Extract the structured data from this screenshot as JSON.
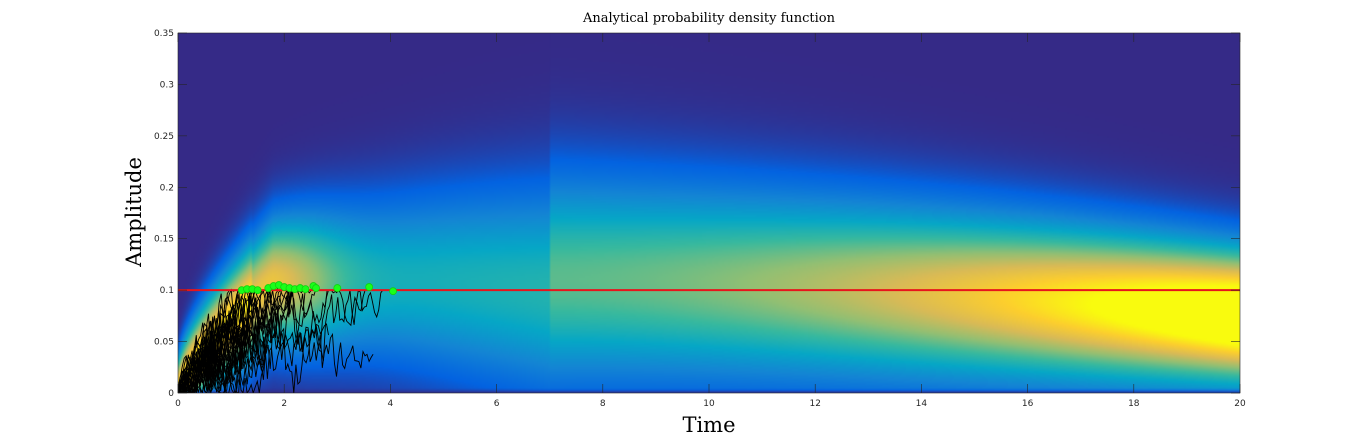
{
  "chart_data": {
    "type": "heatmap",
    "title": "Analytical probability density function",
    "xlabel": "Time",
    "ylabel": "Amplitude",
    "xlim": [
      0,
      20
    ],
    "ylim": [
      0,
      0.35
    ],
    "x_ticks": [
      0,
      2,
      4,
      6,
      8,
      10,
      12,
      14,
      16,
      18,
      20
    ],
    "y_ticks": [
      0,
      0.05,
      0.1,
      0.15,
      0.2,
      0.25,
      0.3,
      0.35
    ],
    "x_tick_labels": [
      "0",
      "2",
      "4",
      "6",
      "8",
      "10",
      "12",
      "14",
      "16",
      "18",
      "20"
    ],
    "y_tick_labels": [
      "0",
      "0.05",
      "0.1",
      "0.15",
      "0.2",
      "0.25",
      "0.3",
      "0.35"
    ],
    "grid": false,
    "colormap": "parula",
    "threshold_line": {
      "y": 0.1,
      "color": "#e8141b"
    },
    "trajectory_color": "#000000",
    "first_passage_marker_color": "#19ff19",
    "first_passage_points": [
      {
        "x": 1.2,
        "y": 0.1
      },
      {
        "x": 1.3,
        "y": 0.101
      },
      {
        "x": 1.4,
        "y": 0.101
      },
      {
        "x": 1.5,
        "y": 0.1
      },
      {
        "x": 1.7,
        "y": 0.102
      },
      {
        "x": 1.8,
        "y": 0.104
      },
      {
        "x": 1.9,
        "y": 0.105
      },
      {
        "x": 2.0,
        "y": 0.103
      },
      {
        "x": 2.1,
        "y": 0.102
      },
      {
        "x": 2.2,
        "y": 0.101
      },
      {
        "x": 2.3,
        "y": 0.102
      },
      {
        "x": 2.4,
        "y": 0.101
      },
      {
        "x": 2.55,
        "y": 0.104
      },
      {
        "x": 2.6,
        "y": 0.102
      },
      {
        "x": 3.0,
        "y": 0.102
      },
      {
        "x": 3.6,
        "y": 0.103
      },
      {
        "x": 4.05,
        "y": 0.099
      }
    ]
  }
}
